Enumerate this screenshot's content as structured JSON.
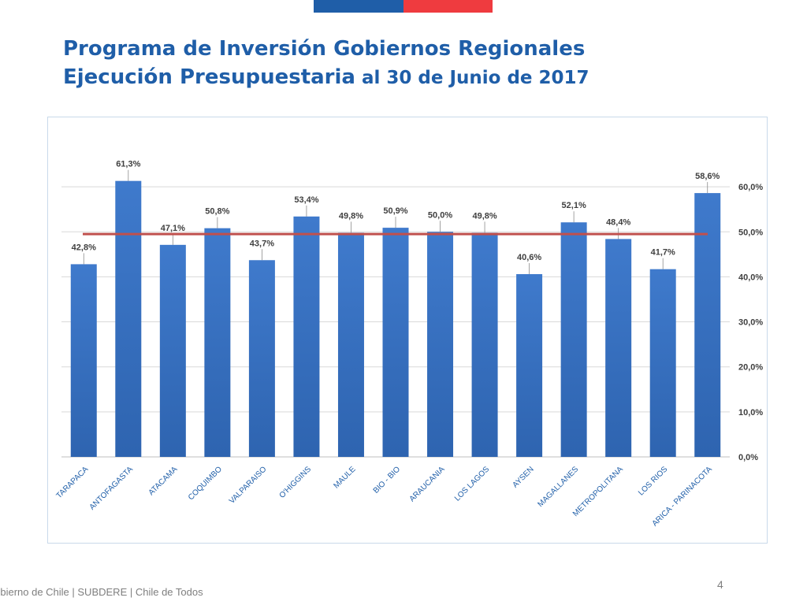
{
  "header": {
    "title_line1": "Programa de Inversión Gobiernos Regionales",
    "title_line2_bold": "Ejecución Presupuestaria",
    "title_line2_rest": " al 30 de Junio de 2017"
  },
  "colors": {
    "bar": "#2e64b0",
    "bar_light": "#3f7acc",
    "average_line": "#c0504d",
    "title": "#1f5ea8",
    "flag_blue": "#1f5ea8",
    "flag_red": "#ef3b3f"
  },
  "chart_data": {
    "type": "bar",
    "categories": [
      "TARAPACA",
      "ANTOFAGASTA",
      "ATACAMA",
      "COQUIMBO",
      "VALPARAISO",
      "O'HIGGINS",
      "MAULE",
      "BIO - BIO",
      "ARAUCANIA",
      "LOS LAGOS",
      "AYSEN",
      "MAGALLANES",
      "METROPOLITANA",
      "LOS RIOS",
      "ARICA - PARINACOTA"
    ],
    "values": [
      42.8,
      61.3,
      47.1,
      50.8,
      43.7,
      53.4,
      49.8,
      50.9,
      50.0,
      49.8,
      40.6,
      52.1,
      48.4,
      41.7,
      58.6
    ],
    "data_labels": [
      "42,8%",
      "61,3%",
      "47,1%",
      "50,8%",
      "43,7%",
      "53,4%",
      "49,8%",
      "50,9%",
      "50,0%",
      "49,8%",
      "40,6%",
      "52,1%",
      "48,4%",
      "41,7%",
      "58,6%"
    ],
    "average_line": 49.5,
    "ylim": [
      0,
      70
    ],
    "y_ticks": [
      0,
      10,
      20,
      30,
      40,
      50,
      60
    ],
    "y_tick_labels": [
      "0,0%",
      "10,0%",
      "20,0%",
      "30,0%",
      "40,0%",
      "50,0%",
      "60,0%"
    ],
    "y_axis_side": "right",
    "grid": true,
    "title": "",
    "xlabel": "",
    "ylabel": ""
  },
  "footer": {
    "text": "Gobierno de Chile | SUBDERE | Chile de Todos",
    "page_number": "4"
  }
}
